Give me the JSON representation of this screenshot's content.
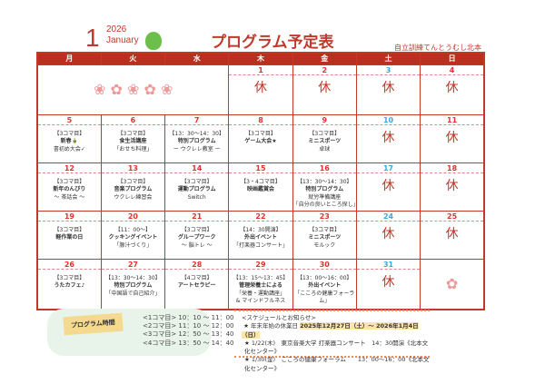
{
  "header": {
    "month": "1",
    "year": "2026",
    "month_en": "January",
    "title": "プログラム予定表",
    "org": "自立訓練てんとうむし北本"
  },
  "weekdays": [
    "月",
    "火",
    "水",
    "木",
    "金",
    "土",
    "日"
  ],
  "holiday_label": "休",
  "weeks": [
    [
      null,
      null,
      null,
      {
        "d": "1",
        "off": true
      },
      {
        "d": "2",
        "off": true
      },
      {
        "d": "3",
        "off": true,
        "sat": true
      },
      {
        "d": "4",
        "off": true
      }
    ],
    [
      {
        "d": "5",
        "l": [
          "【3コマ目】",
          "新春🎍",
          "書初め大会✓"
        ]
      },
      {
        "d": "6",
        "l": [
          "【3コマ目】",
          "食生活講座",
          "「おせち料理」"
        ]
      },
      {
        "d": "7",
        "l": [
          "【13：30〜14：30】",
          "特別プログラム",
          "ー ウクレレ教室 ー"
        ]
      },
      {
        "d": "8",
        "l": [
          "【3コマ目】",
          "ゲーム大会★"
        ]
      },
      {
        "d": "9",
        "l": [
          "【3コマ目】",
          "ミニスポーツ",
          "卓球"
        ]
      },
      {
        "d": "10",
        "off": true,
        "sat": true
      },
      {
        "d": "11",
        "off": true
      }
    ],
    [
      {
        "d": "12",
        "l": [
          "【3コマ目】",
          "新年のんびり",
          "〜 茶話会 〜"
        ]
      },
      {
        "d": "13",
        "l": [
          "【3コマ目】",
          "音楽プログラム",
          "ウクレレ練習会"
        ]
      },
      {
        "d": "14",
        "l": [
          "【3コマ目】",
          "運動プログラム",
          "Switch"
        ]
      },
      {
        "d": "15",
        "l": [
          "【3・4コマ目】",
          "映画鑑賞会"
        ]
      },
      {
        "d": "16",
        "l": [
          "【13：30〜14：30】",
          "特別プログラム",
          "就労準備講座",
          "「自分の良いところ探し」"
        ]
      },
      {
        "d": "17",
        "off": true,
        "sat": true
      },
      {
        "d": "18",
        "off": true
      }
    ],
    [
      {
        "d": "19",
        "l": [
          "【3コマ目】",
          "軽作業の日"
        ]
      },
      {
        "d": "20",
        "l": [
          "【11：00〜】",
          "クッキングイベント",
          "「豚汁づくり」"
        ]
      },
      {
        "d": "21",
        "l": [
          "【3コマ目】",
          "グループワーク",
          "〜 脳トレ 〜"
        ]
      },
      {
        "d": "22",
        "l": [
          "【14：30開演】",
          "外出イベント",
          "「打楽器コンサート」"
        ]
      },
      {
        "d": "23",
        "l": [
          "【3コマ目】",
          "ミニスポーツ",
          "モルック"
        ]
      },
      {
        "d": "24",
        "off": true,
        "sat": true
      },
      {
        "d": "25",
        "off": true
      }
    ],
    [
      {
        "d": "26",
        "l": [
          "【3コマ目】",
          "うたカフェ♪"
        ]
      },
      {
        "d": "27",
        "l": [
          "【13：30〜14：30】",
          "特別プログラム",
          "「中国語で自己紹介」"
        ]
      },
      {
        "d": "28",
        "l": [
          "【4コマ目】",
          "アートセラピー"
        ]
      },
      {
        "d": "29",
        "l": [
          "【13：15〜13：45】",
          "管理栄養士による",
          "「栄養・運動講座」",
          "& マインドフルネス"
        ]
      },
      {
        "d": "30",
        "l": [
          "【13：00〜16：00】",
          "外出イベント",
          "「こころの健康フォーラム」"
        ]
      },
      {
        "d": "31",
        "off": true,
        "sat": true
      },
      null
    ]
  ],
  "program_times": {
    "label": "プログラム時間",
    "rows": [
      "<1コマ目> 10：10 〜 11：00",
      "<2コマ目> 11：10 〜 12：00",
      "<3コマ目> 12：50 〜 13：40",
      "<4コマ目> 13：50 〜 14：40"
    ]
  },
  "schedule": {
    "heading": "<スケジュールとお知らせ>",
    "holiday_prefix": "★ 年末年始の休業日",
    "holiday_range": "2025年12月27日（土）〜 2026年1月4日（日）",
    "items": [
      "★ 1/22(木)　東京音楽大学 打楽器コンサート　14：30開演《北本文化センター》",
      "★ 1/30(金)　こころの健康フォーラム　　13：00〜16：00《北本文化センター》"
    ]
  },
  "colors": {
    "accent": "#b9301e",
    "saturday": "#3aa7e0"
  }
}
